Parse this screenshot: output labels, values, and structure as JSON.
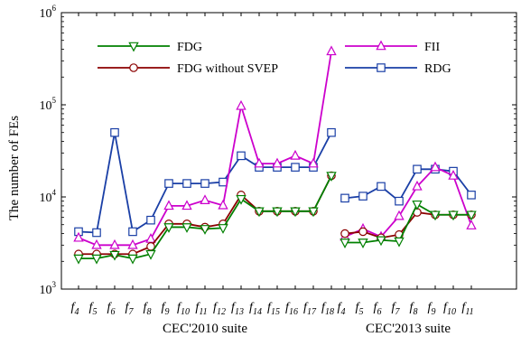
{
  "chart_data": {
    "type": "line",
    "ylabel": "The number of FEs",
    "yscale": "log",
    "ylim": [
      1000,
      1000000
    ],
    "yticks": [
      {
        "value": 1000,
        "base": "10",
        "exp": "3"
      },
      {
        "value": 10000,
        "base": "10",
        "exp": "4"
      },
      {
        "value": 100000,
        "base": "10",
        "exp": "5"
      },
      {
        "value": 1000000,
        "base": "10",
        "exp": "6"
      }
    ],
    "grid": false,
    "legend_placement": "top",
    "groups": [
      {
        "label": "CEC'2010 suite",
        "categories": [
          {
            "base": "f",
            "sub": "4"
          },
          {
            "base": "f",
            "sub": "5"
          },
          {
            "base": "f",
            "sub": "6"
          },
          {
            "base": "f",
            "sub": "7"
          },
          {
            "base": "f",
            "sub": "8"
          },
          {
            "base": "f",
            "sub": "9"
          },
          {
            "base": "f",
            "sub": "10"
          },
          {
            "base": "f",
            "sub": "11"
          },
          {
            "base": "f",
            "sub": "12"
          },
          {
            "base": "f",
            "sub": "13"
          },
          {
            "base": "f",
            "sub": "14"
          },
          {
            "base": "f",
            "sub": "15"
          },
          {
            "base": "f",
            "sub": "16"
          },
          {
            "base": "f",
            "sub": "17"
          },
          {
            "base": "f",
            "sub": "18"
          }
        ]
      },
      {
        "label": "CEC'2013 suite",
        "categories": [
          {
            "base": "f",
            "sub": "4"
          },
          {
            "base": "f",
            "sub": "5"
          },
          {
            "base": "f",
            "sub": "6"
          },
          {
            "base": "f",
            "sub": "7"
          },
          {
            "base": "f",
            "sub": "8"
          },
          {
            "base": "f",
            "sub": "9"
          },
          {
            "base": "f",
            "sub": "10"
          },
          {
            "base": "f",
            "sub": "11"
          }
        ]
      }
    ],
    "series": [
      {
        "name": "FDG",
        "color": "#008000",
        "marker": "triangle-down",
        "values": [
          [
            2150,
            2150,
            2350,
            2150,
            2400,
            4700,
            4700,
            4500,
            4600,
            9500,
            7000,
            7000,
            7000,
            7000,
            17000
          ],
          [
            3200,
            3200,
            3400,
            3300,
            8300,
            6400,
            6400,
            6400
          ]
        ]
      },
      {
        "name": "FDG without SVEP",
        "color": "#8b0000",
        "marker": "circle",
        "values": [
          [
            2400,
            2400,
            2400,
            2400,
            2900,
            5100,
            5100,
            4700,
            5100,
            10500,
            7000,
            7000,
            7000,
            7000,
            17000
          ],
          [
            4000,
            4200,
            3600,
            3900,
            6800,
            6400,
            6400,
            6400
          ]
        ]
      },
      {
        "name": "FII",
        "color": "#cc00cc",
        "marker": "triangle-up",
        "values": [
          [
            3600,
            3000,
            3000,
            3000,
            3500,
            8000,
            8000,
            9200,
            8100,
            97000,
            23000,
            23000,
            28000,
            23000,
            380000
          ],
          [
            3700,
            4500,
            3700,
            6200,
            13000,
            21000,
            17000,
            4900
          ]
        ]
      },
      {
        "name": "RDG",
        "color": "#1a3fa6",
        "marker": "square",
        "values": [
          [
            4200,
            4100,
            50000,
            4200,
            5600,
            14000,
            14000,
            14000,
            14500,
            28000,
            21000,
            21000,
            21000,
            21000,
            50000
          ],
          [
            9700,
            10200,
            13000,
            9000,
            20000,
            20000,
            19000,
            10500
          ]
        ]
      }
    ]
  }
}
